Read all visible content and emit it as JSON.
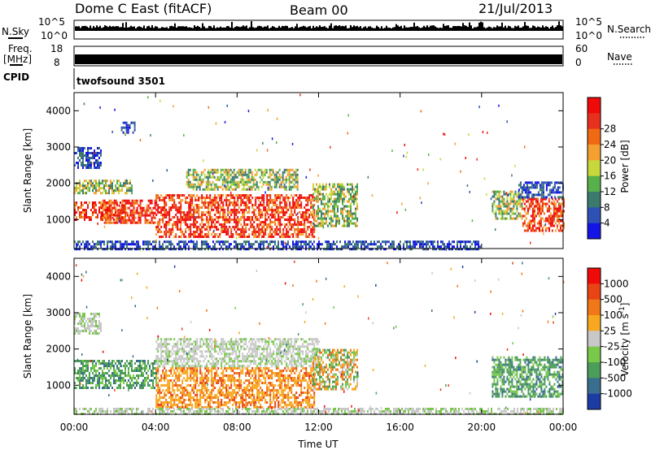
{
  "header": {
    "station": "Dome C East (fitACF)",
    "beam": "Beam 00",
    "date": "21/Jul/2013"
  },
  "summary_panels": {
    "nsky_label": "N.Sky",
    "nsky_ticks": [
      "10^5",
      "10^0"
    ],
    "nsearch_label": "N.Search",
    "nsearch_ticks": [
      "10^5",
      "10^0"
    ],
    "freq_label": "Freq.",
    "freq_unit": "[MHz]",
    "freq_ticks": [
      "18",
      "8"
    ],
    "nave_label": "Nave",
    "nave_ticks": [
      "60",
      "0"
    ],
    "cpid_label": "CPID",
    "cpid_value": "twofsound 3501"
  },
  "chart_data": [
    {
      "type": "heatmap",
      "name": "power",
      "ylabel": "Slant Range [km]",
      "xlabel": "Time UT",
      "ylim": [
        200,
        4500
      ],
      "yticks": [
        "1000",
        "2000",
        "3000",
        "4000"
      ],
      "xticks": [
        "00:00",
        "04:00",
        "08:00",
        "12:00",
        "16:00",
        "20:00",
        "00:00"
      ],
      "colorbar": {
        "label": "Power [dB]",
        "ticks": [
          "4",
          "8",
          "12",
          "16",
          "20",
          "24",
          "28"
        ],
        "colors": [
          "#1414e6",
          "#2e52b4",
          "#3c7a6e",
          "#58b04a",
          "#c8d83c",
          "#f4a030",
          "#f06a14",
          "#e8301e",
          "#f00a0a"
        ]
      },
      "regions": [
        {
          "t0": 0.0,
          "t1": 1.3,
          "r0": 2450,
          "r1": 3000,
          "level": "low"
        },
        {
          "t0": 2.3,
          "t1": 3.0,
          "r0": 3400,
          "r1": 3700,
          "level": "low"
        },
        {
          "t0": 0.0,
          "t1": 2.8,
          "r0": 1700,
          "r1": 2100,
          "level": "mid"
        },
        {
          "t0": 0.0,
          "t1": 2.5,
          "r0": 1000,
          "r1": 1500,
          "level": "high"
        },
        {
          "t0": 1.3,
          "t1": 4.0,
          "r0": 900,
          "r1": 1550,
          "level": "high"
        },
        {
          "t0": 4.0,
          "t1": 11.8,
          "r0": 500,
          "r1": 1700,
          "level": "high"
        },
        {
          "t0": 5.5,
          "t1": 11.0,
          "r0": 1800,
          "r1": 2400,
          "level": "mid"
        },
        {
          "t0": 11.7,
          "t1": 13.9,
          "r0": 800,
          "r1": 2000,
          "level": "mid"
        },
        {
          "t0": 0.0,
          "t1": 20.0,
          "r0": 200,
          "r1": 420,
          "level": "low"
        },
        {
          "t0": 20.5,
          "t1": 22.0,
          "r0": 1000,
          "r1": 1800,
          "level": "mid"
        },
        {
          "t0": 22.0,
          "t1": 24.0,
          "r0": 700,
          "r1": 1600,
          "level": "high"
        },
        {
          "t0": 21.8,
          "t1": 24.0,
          "r0": 1600,
          "r1": 2050,
          "level": "low"
        }
      ]
    },
    {
      "type": "heatmap",
      "name": "velocity",
      "ylabel": "Slant Range [km]",
      "xlabel": "Time UT",
      "ylim": [
        200,
        4500
      ],
      "yticks": [
        "1000",
        "2000",
        "3000",
        "4000"
      ],
      "xticks": [
        "00:00",
        "04:00",
        "08:00",
        "12:00",
        "16:00",
        "20:00",
        "00:00"
      ],
      "colorbar": {
        "label": "Velocity [m s-1]",
        "ticks": [
          "1000",
          "500",
          "100",
          "25",
          "-25",
          "-100",
          "-500",
          "-1000"
        ],
        "colors": [
          "#1c3ca4",
          "#3a6e8e",
          "#4c9c5a",
          "#78c84a",
          "#c8c8c8",
          "#f8a820",
          "#f07818",
          "#e84414",
          "#f00a0a"
        ]
      },
      "regions": [
        {
          "t0": 0.0,
          "t1": 1.3,
          "r0": 2450,
          "r1": 3000,
          "level": "grey"
        },
        {
          "t0": 0.0,
          "t1": 4.0,
          "r0": 900,
          "r1": 1700,
          "level": "green"
        },
        {
          "t0": 4.0,
          "t1": 11.8,
          "r0": 400,
          "r1": 1500,
          "level": "orange"
        },
        {
          "t0": 4.0,
          "t1": 12.0,
          "r0": 1500,
          "r1": 2300,
          "level": "grey"
        },
        {
          "t0": 11.7,
          "t1": 13.9,
          "r0": 900,
          "r1": 2000,
          "level": "mixed"
        },
        {
          "t0": 20.5,
          "t1": 24.0,
          "r0": 700,
          "r1": 1800,
          "level": "green"
        },
        {
          "t0": 0.0,
          "t1": 24.0,
          "r0": 200,
          "r1": 380,
          "level": "grey"
        }
      ]
    }
  ]
}
